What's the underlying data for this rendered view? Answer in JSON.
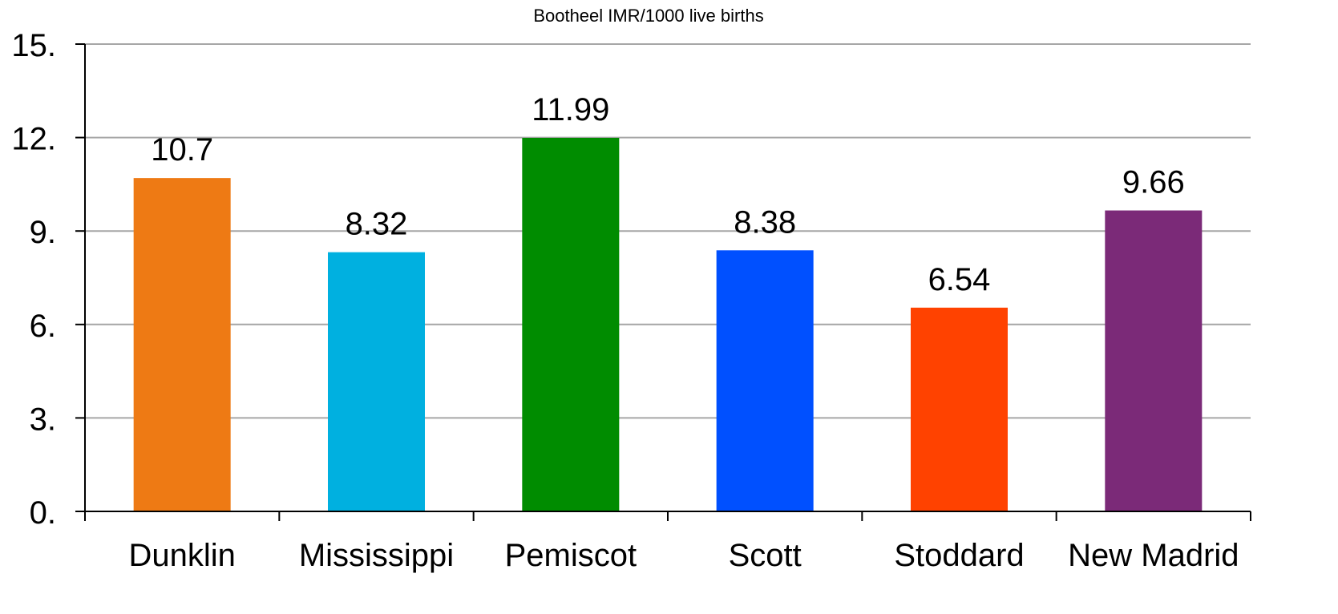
{
  "chart_data": {
    "type": "bar",
    "title": "Bootheel IMR/1000 live births",
    "xlabel": "",
    "ylabel": "",
    "categories": [
      "Dunklin",
      "Mississippi",
      "Pemiscot",
      "Scott",
      "Stoddard",
      "New Madrid"
    ],
    "values": [
      10.7,
      8.32,
      11.99,
      8.38,
      6.54,
      9.66
    ],
    "value_labels": [
      "10.7",
      "8.32",
      "11.99",
      "8.38",
      "6.54",
      "9.66"
    ],
    "colors": [
      "#EE7A14",
      "#00B0E0",
      "#008C00",
      "#0050FF",
      "#FF4200",
      "#7B2A78"
    ],
    "ylim": [
      0,
      15
    ],
    "yticks": [
      0,
      3,
      6,
      9,
      12,
      15
    ],
    "ytick_labels": [
      "0.",
      "3.",
      "6.",
      "9.",
      "12.",
      "15."
    ],
    "grid": true,
    "legend": "none"
  },
  "colors": {
    "gridline": "#A6A6A6",
    "axis": "#000000",
    "text": "#000000"
  }
}
